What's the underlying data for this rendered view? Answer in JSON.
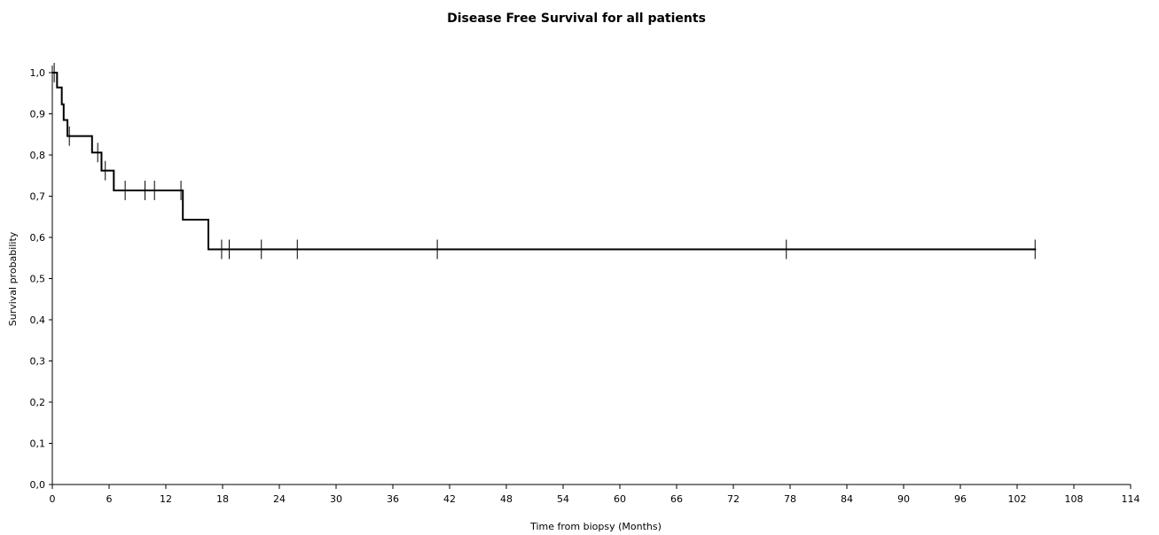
{
  "chart_data": {
    "type": "line",
    "title": "Disease Free Survival for all patients",
    "xlabel": "Time from biopsy (Months)",
    "ylabel": "Survival probability",
    "xlim": [
      0,
      114
    ],
    "ylim": [
      0,
      1
    ],
    "grid": false,
    "x_ticks": [
      0,
      6,
      12,
      18,
      24,
      30,
      36,
      42,
      48,
      54,
      60,
      66,
      72,
      78,
      84,
      90,
      96,
      102,
      108,
      114
    ],
    "x_tick_labels": [
      "0",
      "6",
      "12",
      "18",
      "24",
      "30",
      "36",
      "42",
      "48",
      "54",
      "60",
      "66",
      "72",
      "78",
      "84",
      "90",
      "96",
      "102",
      "108",
      "114"
    ],
    "y_ticks": [
      0,
      0.1,
      0.2,
      0.3,
      0.4,
      0.5,
      0.6,
      0.7,
      0.8,
      0.9,
      1.0
    ],
    "y_tick_labels": [
      "0,0",
      "0,1",
      "0,2",
      "0,3",
      "0,4",
      "0,5",
      "0,6",
      "0,7",
      "0,8",
      "0,9",
      "1,0"
    ],
    "series": [
      {
        "steps": [
          {
            "x": 0,
            "y": 1.0
          },
          {
            "x": 0.5,
            "y": 0.964
          },
          {
            "x": 1.0,
            "y": 0.923
          },
          {
            "x": 1.2,
            "y": 0.885
          },
          {
            "x": 1.6,
            "y": 0.846
          },
          {
            "x": 4.2,
            "y": 0.806
          },
          {
            "x": 5.2,
            "y": 0.762
          },
          {
            "x": 6.5,
            "y": 0.714
          },
          {
            "x": 13.8,
            "y": 0.643
          },
          {
            "x": 16.5,
            "y": 0.571
          }
        ],
        "x_end": 104,
        "censored": [
          {
            "x": 0.2,
            "y": 1.0
          },
          {
            "x": 1.8,
            "y": 0.846
          },
          {
            "x": 4.8,
            "y": 0.806
          },
          {
            "x": 5.6,
            "y": 0.762
          },
          {
            "x": 7.7,
            "y": 0.714
          },
          {
            "x": 9.8,
            "y": 0.714
          },
          {
            "x": 10.8,
            "y": 0.714
          },
          {
            "x": 13.6,
            "y": 0.714
          },
          {
            "x": 17.9,
            "y": 0.571
          },
          {
            "x": 18.7,
            "y": 0.571
          },
          {
            "x": 22.1,
            "y": 0.571
          },
          {
            "x": 25.9,
            "y": 0.571
          },
          {
            "x": 40.7,
            "y": 0.571
          },
          {
            "x": 77.6,
            "y": 0.571
          },
          {
            "x": 103.9,
            "y": 0.571
          }
        ]
      }
    ]
  }
}
